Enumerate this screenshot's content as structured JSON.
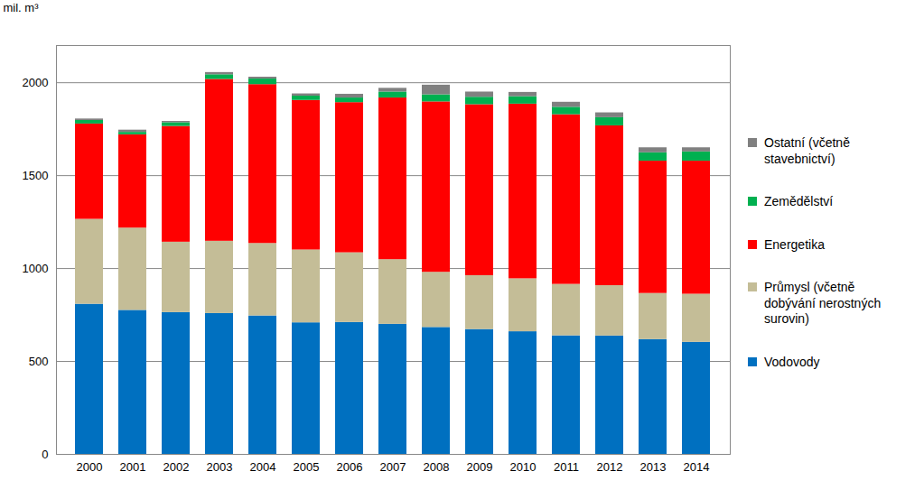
{
  "chart_data": {
    "type": "bar",
    "stacked": true,
    "grid": true,
    "legend": "right",
    "y_label": "mil. m³",
    "categories": [
      "2000",
      "2001",
      "2002",
      "2003",
      "2004",
      "2005",
      "2006",
      "2007",
      "2008",
      "2009",
      "2010",
      "2011",
      "2012",
      "2013",
      "2014"
    ],
    "ylim": [
      0,
      2200
    ],
    "yticks": [
      0,
      500,
      1000,
      1500,
      2000
    ],
    "series": [
      {
        "name": "Vodovody",
        "color": "#0070C0",
        "values": [
          808,
          775,
          763,
          758,
          745,
          708,
          710,
          700,
          683,
          672,
          660,
          638,
          637,
          618,
          603
        ]
      },
      {
        "name": "Průmysl (včetně dobývání nerostných surovin)",
        "color": "#C4BD97",
        "values": [
          457,
          443,
          379,
          389,
          390,
          392,
          375,
          348,
          297,
          290,
          285,
          277,
          271,
          248,
          259
        ]
      },
      {
        "name": "Energetika",
        "color": "#FF0000",
        "values": [
          513,
          502,
          623,
          871,
          855,
          805,
          808,
          870,
          917,
          920,
          940,
          913,
          860,
          712,
          716
        ]
      },
      {
        "name": "Zemědělství",
        "color": "#00B050",
        "values": [
          19,
          13,
          20,
          25,
          30,
          23,
          25,
          32,
          38,
          40,
          40,
          40,
          44,
          45,
          50
        ]
      },
      {
        "name": "Ostatní (včetně stavebnictví)",
        "color": "#808080",
        "values": [
          8,
          12,
          7,
          12,
          10,
          12,
          20,
          20,
          52,
          28,
          23,
          27,
          26,
          27,
          22
        ]
      }
    ]
  }
}
